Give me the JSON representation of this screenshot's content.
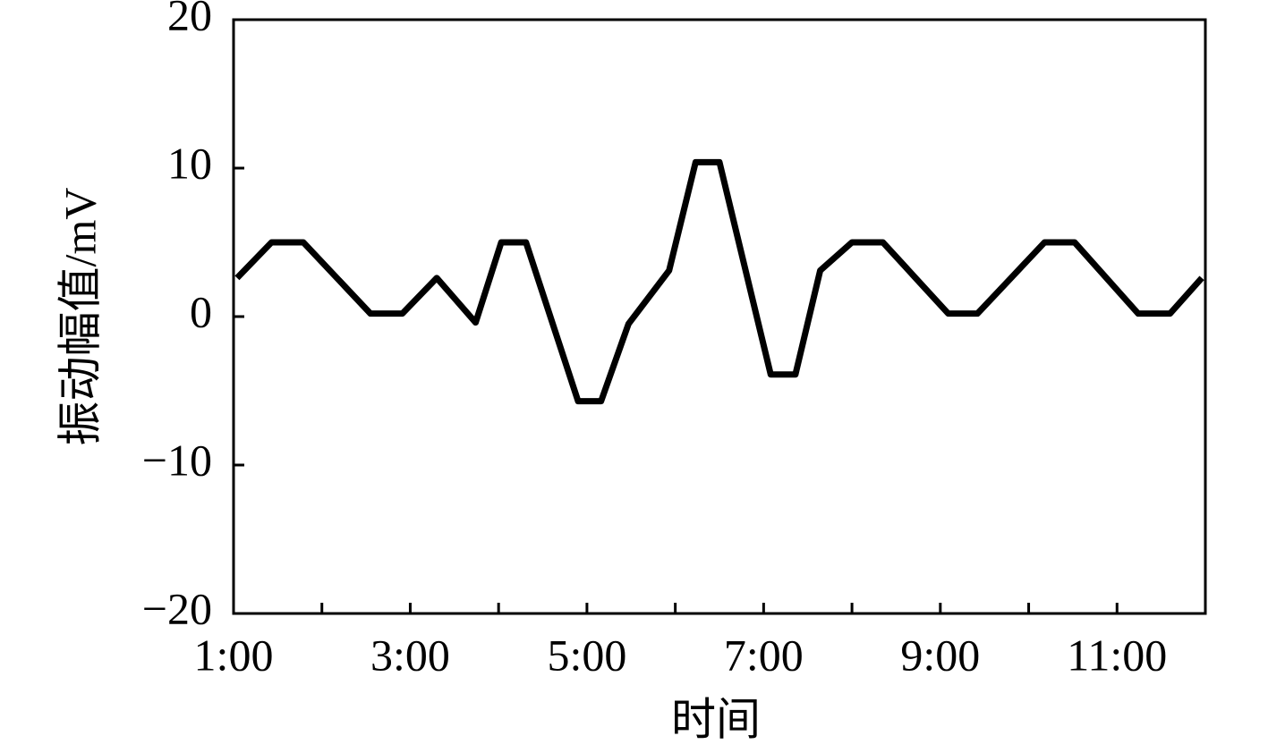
{
  "chart_data": {
    "type": "line",
    "x_label": "时间",
    "y_label": "振动幅值/mV",
    "series": [
      {
        "color": "#000000",
        "x": [
          1.04,
          1.43,
          1.79,
          2.55,
          2.91,
          3.3,
          3.74,
          4.03,
          4.31,
          4.9,
          5.16,
          5.47,
          5.93,
          6.23,
          6.5,
          7.08,
          7.36,
          7.64,
          8.0,
          8.35,
          9.09,
          9.42,
          9.8,
          10.18,
          10.52,
          11.24,
          11.6,
          11.96
        ],
        "values": [
          2.6,
          5,
          5,
          0.2,
          0.2,
          2.6,
          -0.4,
          5,
          5,
          -5.7,
          -5.7,
          -0.5,
          3.1,
          10.4,
          10.4,
          -3.9,
          -3.9,
          3.1,
          5,
          5,
          0.2,
          0.2,
          2.6,
          5,
          5,
          0.2,
          0.2,
          2.6
        ]
      }
    ],
    "xlim": [
      1,
      12
    ],
    "xticks": [
      {
        "value": 1,
        "label": "1:00"
      },
      {
        "value": 3,
        "label": "3:00"
      },
      {
        "value": 5,
        "label": "5:00"
      },
      {
        "value": 7,
        "label": "7:00"
      },
      {
        "value": 9,
        "label": "9:00"
      },
      {
        "value": 11,
        "label": "11:00"
      }
    ],
    "xminorticks": [
      2,
      4,
      6,
      8,
      10
    ],
    "ylim": [
      -20,
      20
    ],
    "yticks": [
      {
        "value": -20,
        "label": "−20"
      },
      {
        "value": -10,
        "label": "−10"
      },
      0,
      10,
      20
    ],
    "grid": false
  }
}
